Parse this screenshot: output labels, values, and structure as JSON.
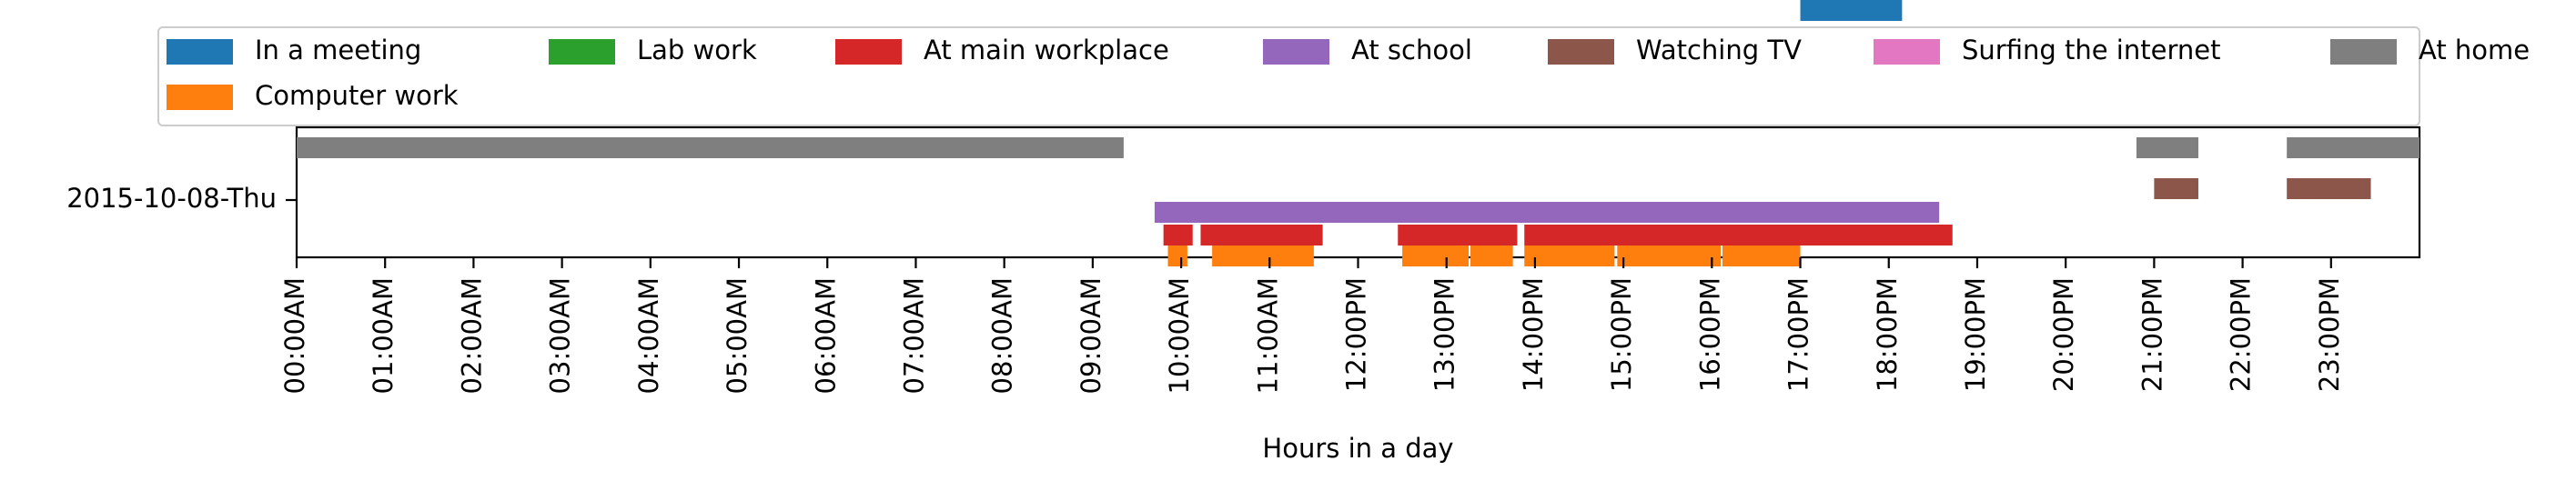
{
  "chart_data": {
    "type": "timeline",
    "xlabel": "Hours in a day",
    "ylabel": "",
    "day_label": "2015-10-08-Thu",
    "xlim_hours": [
      0,
      24
    ],
    "x_ticks": [
      "00:00AM",
      "01:00AM",
      "02:00AM",
      "03:00AM",
      "04:00AM",
      "05:00AM",
      "06:00AM",
      "07:00AM",
      "08:00AM",
      "09:00AM",
      "10:00AM",
      "11:00AM",
      "12:00PM",
      "13:00PM",
      "14:00PM",
      "15:00PM",
      "16:00PM",
      "17:00PM",
      "18:00PM",
      "19:00PM",
      "20:00PM",
      "21:00PM",
      "22:00PM",
      "23:00PM"
    ],
    "legend_position": "top",
    "series": [
      {
        "name": "In a meeting",
        "color": "#1f77b4",
        "lane": 5,
        "intervals": [
          [
            17.0,
            18.15
          ]
        ]
      },
      {
        "name": "Computer work",
        "color": "#ff7f0e",
        "lane": 4,
        "intervals": [
          [
            9.85,
            10.07
          ],
          [
            10.35,
            11.5
          ],
          [
            12.5,
            13.25
          ],
          [
            13.27,
            13.75
          ],
          [
            13.88,
            14.9
          ],
          [
            14.93,
            16.1
          ],
          [
            16.12,
            17.0
          ]
        ]
      },
      {
        "name": "Lab work",
        "color": "#2ca02c",
        "lane": 4,
        "intervals": []
      },
      {
        "name": "At main workplace",
        "color": "#d62728",
        "lane": 3,
        "intervals": [
          [
            9.8,
            10.13
          ],
          [
            10.22,
            11.6
          ],
          [
            12.45,
            13.8
          ],
          [
            13.88,
            18.72
          ]
        ]
      },
      {
        "name": "At school",
        "color": "#9467bd",
        "lane": 2,
        "intervals": [
          [
            9.7,
            18.57
          ]
        ]
      },
      {
        "name": "Watching TV",
        "color": "#8c564b",
        "lane": 1,
        "intervals": [
          [
            21.0,
            21.5
          ],
          [
            22.5,
            23.45
          ]
        ]
      },
      {
        "name": "Surfing the internet",
        "color": "#e377c2",
        "lane": 1,
        "intervals": []
      },
      {
        "name": "At home",
        "color": "#7f7f7f",
        "lane": 0,
        "intervals": [
          [
            0.0,
            9.35
          ],
          [
            20.8,
            21.5
          ],
          [
            22.5,
            24.0
          ]
        ]
      }
    ]
  }
}
